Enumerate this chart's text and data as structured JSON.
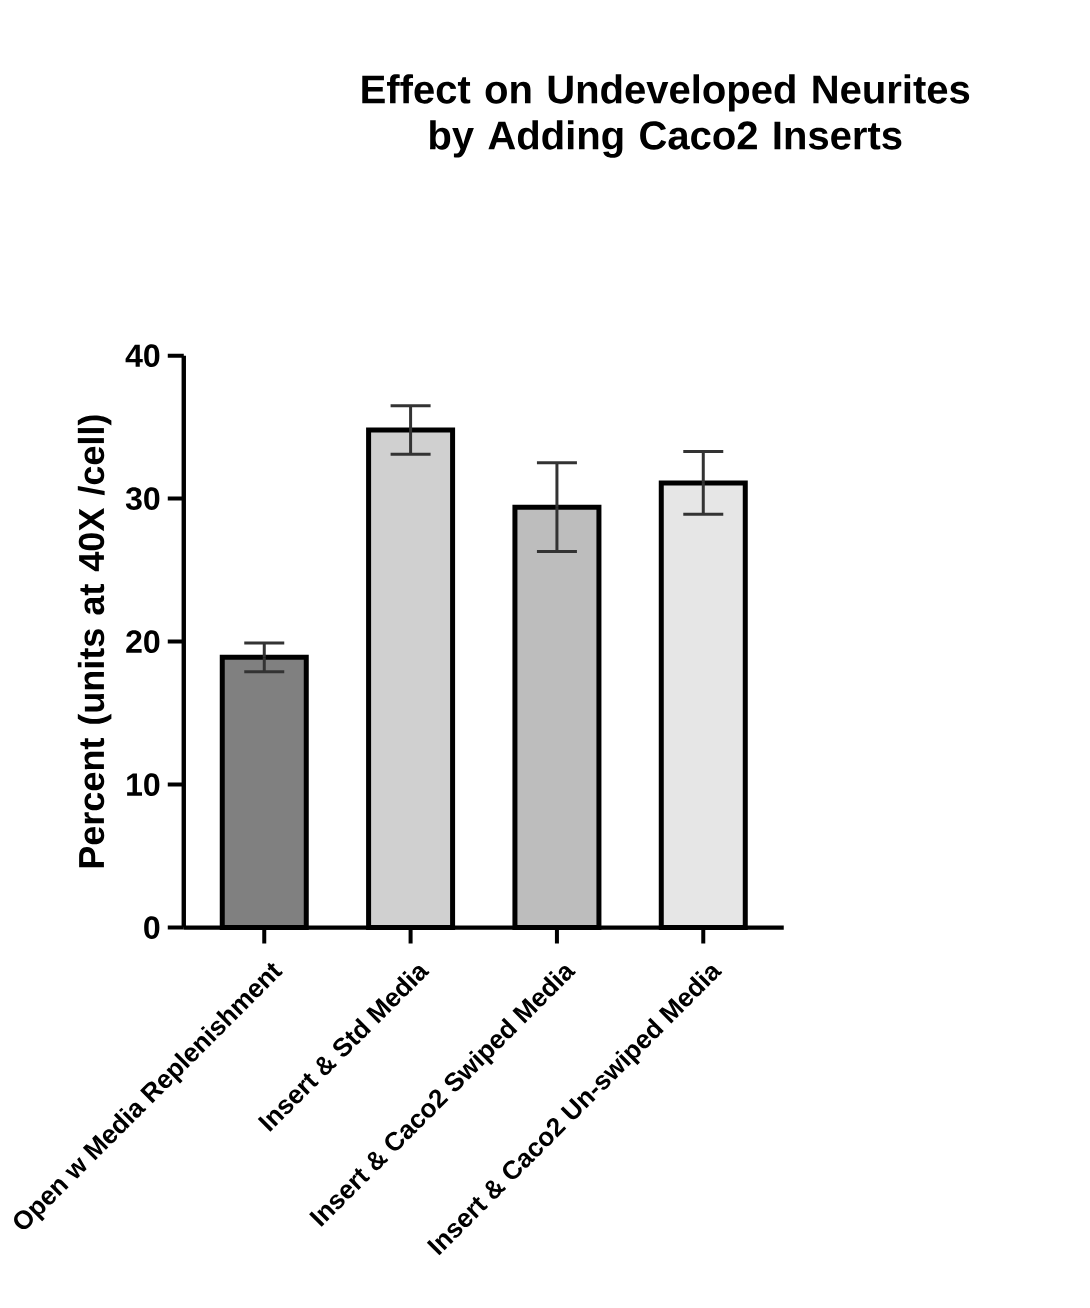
{
  "chart_data": {
    "type": "bar",
    "title": "Effect on Undeveloped Neurites by Adding Caco2 Inserts",
    "ylabel": "Percent (units at 40X /cell)",
    "categories": [
      "Open w Media Replenishment",
      "Insert & Std Media",
      "Insert & Caco2 Swiped Media",
      "Insert & Caco2 Un-swiped Media"
    ],
    "values": [
      18.9,
      34.8,
      29.4,
      31.1
    ],
    "errors": [
      1.0,
      1.7,
      3.1,
      2.2
    ],
    "colors": [
      "#808080",
      "#d0d0d0",
      "#bdbdbd",
      "#e6e6e6"
    ],
    "ylim": [
      0,
      40
    ],
    "yticks": [
      0,
      10,
      20,
      30,
      40
    ],
    "grid": false
  }
}
